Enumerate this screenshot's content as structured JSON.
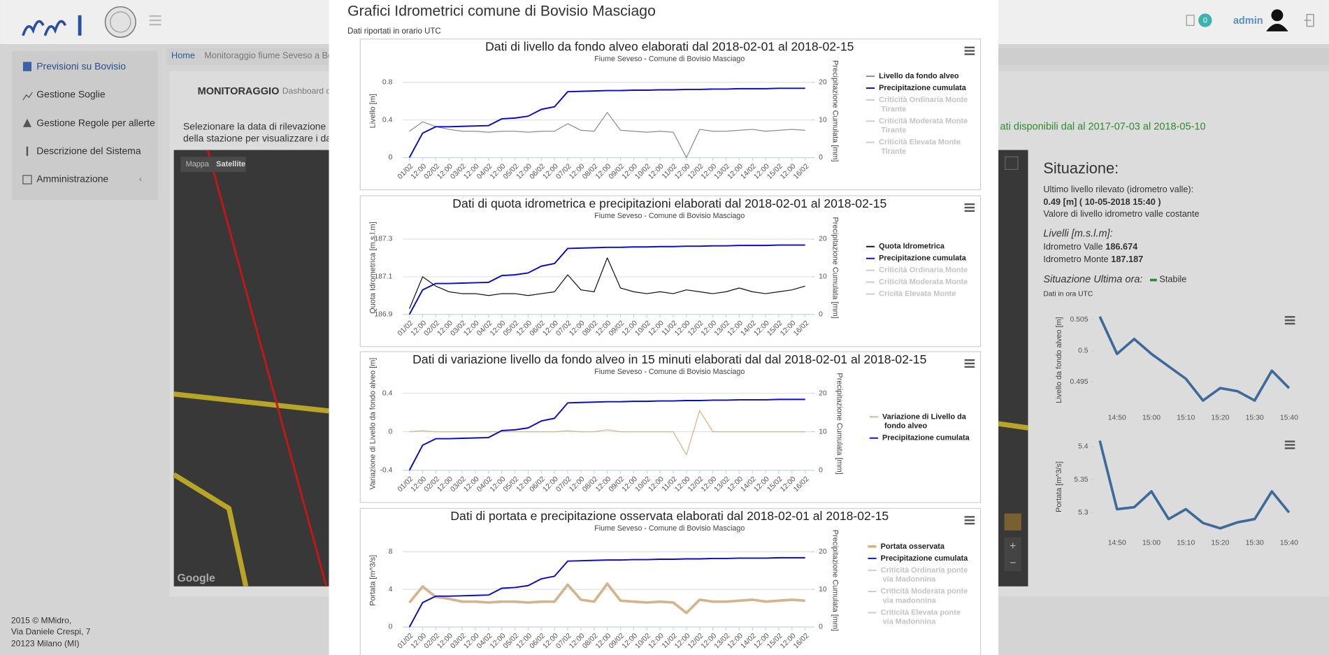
{
  "header": {
    "badge": "0",
    "user": "admin"
  },
  "sidebar": [
    "Previsioni su Bovisio",
    "Gestione Soglie",
    "Gestione Regole per allerte",
    "Descrizione del Sistema",
    "Amministrazione"
  ],
  "breadcrumb": [
    "Home",
    "Monitoraggio fiume Seveso a Bo"
  ],
  "panel": {
    "title": "MONITORAGGIO",
    "subtitle": "Dashboard c",
    "instructions": [
      "Selezionare la data di rilevazione e c",
      "della stazione per visualizzare i dati"
    ],
    "availability": "ati disponibili dal al 2017-07-03 al 2018-05-10"
  },
  "map": {
    "controls": [
      "Mappa",
      "Satellite"
    ],
    "brand": "Google"
  },
  "footer": [
    "2015 © MMidro,",
    "Via Daniele Crespi, 7",
    "20123 Milano (MI)"
  ],
  "modal": {
    "title": "Grafici Idrometrici comune di Bovisio Masciago",
    "note": "Dati riportati in orario UTC"
  },
  "situation": {
    "title": "Situazione:",
    "last_label": "Ultimo livello rilevato (idrometro valle):",
    "last_value": "0.49 [m] ( 10-05-2018 15:40 )",
    "trend": "Valore di livello idrometro valle costante",
    "levels_title": "Livelli [m.s.l.m]:",
    "valle_label": "Idrometro Valle",
    "valle_value": "186.674",
    "monte_label": "Idrometro Monte",
    "monte_value": "187.187",
    "hour_label": "Situazione Ultima ora:",
    "hour_value": "Stabile",
    "utc": "Dati in ora UTC"
  },
  "chart_data": [
    {
      "type": "line",
      "title": "Dati di livello da fondo alveo elaborati dal 2018-02-01 al 2018-02-15",
      "subtitle": "Fiume Seveso - Comune di Bovisio Masciago",
      "ylabel": "Livello [m]",
      "y2label": "Precipitazione Cumulata [mm]",
      "categories": [
        "01/02",
        "12:00",
        "02/02",
        "12:00",
        "03/02",
        "12:00",
        "04/02",
        "12:00",
        "05/02",
        "12:00",
        "06/02",
        "12:00",
        "07/02",
        "12:00",
        "08/02",
        "12:00",
        "09/02",
        "12:00",
        "10/02",
        "12:00",
        "11/02",
        "12:00",
        "12/02",
        "12:00",
        "13/02",
        "12:00",
        "14/02",
        "12:00",
        "15/02",
        "12:00",
        "16/02"
      ],
      "ylim": [
        0,
        0.9
      ],
      "yticks": [
        0,
        0.4,
        0.8
      ],
      "y2lim": [
        0,
        22.5
      ],
      "y2ticks": [
        0,
        10,
        20
      ],
      "grid": true,
      "series": [
        {
          "name": "Livello da fondo alveo",
          "color": "#8c8c8c",
          "values": [
            0.28,
            0.38,
            0.33,
            0.3,
            0.28,
            0.28,
            0.27,
            0.28,
            0.28,
            0.27,
            0.28,
            0.28,
            0.36,
            0.29,
            0.28,
            0.48,
            0.29,
            0.28,
            0.27,
            0.28,
            0.27,
            0.0,
            0.3,
            0.28,
            0.28,
            0.29,
            0.3,
            0.28,
            0.29,
            0.3,
            0.29
          ]
        },
        {
          "name": "Precipitazione cumulata",
          "color": "#0a0ac8",
          "axis": "y2",
          "values": [
            0,
            6.5,
            8.2,
            8.2,
            8.3,
            8.4,
            8.5,
            10.3,
            10.5,
            11.0,
            12.8,
            13.5,
            17.5,
            17.6,
            17.7,
            17.8,
            17.8,
            17.9,
            17.9,
            18.0,
            18.0,
            18.1,
            18.1,
            18.2,
            18.2,
            18.3,
            18.3,
            18.3,
            18.4,
            18.4,
            18.4
          ]
        }
      ],
      "hidden_series": [
        {
          "name": "Criticità Ordinaria Monte Tirante",
          "color": "#cccccc"
        },
        {
          "name": "Criticità Moderata Monte Tirante",
          "color": "#cccccc"
        },
        {
          "name": "Criticità Elevata Monte Tirante",
          "color": "#cccccc"
        }
      ]
    },
    {
      "type": "line",
      "title": "Dati di quota idrometrica e precipitazioni elaborati dal 2018-02-01 al 2018-02-15",
      "subtitle": "Fiume Seveso - Comune di Bovisio Masciago",
      "ylabel": "Quota Idrometrica [m.s.l.m]",
      "y2label": "Precipitazione Cumulata [mm]",
      "categories": [
        "01/02",
        "12:00",
        "02/02",
        "12:00",
        "03/02",
        "12:00",
        "04/02",
        "12:00",
        "05/02",
        "12:00",
        "06/02",
        "12:00",
        "07/02",
        "12:00",
        "08/02",
        "12:00",
        "09/02",
        "12:00",
        "10/02",
        "12:00",
        "11/02",
        "12:00",
        "12/02",
        "12:00",
        "13/02",
        "12:00",
        "14/02",
        "12:00",
        "15/02",
        "12:00",
        "16/02"
      ],
      "ylim": [
        186.9,
        187.35
      ],
      "yticks": [
        186.9,
        187.1,
        187.3
      ],
      "y2lim": [
        0,
        22.5
      ],
      "y2ticks": [
        0,
        10,
        20
      ],
      "grid": true,
      "series": [
        {
          "name": "Quota Idrometrica",
          "color": "#111111",
          "values": [
            186.93,
            187.1,
            187.05,
            187.02,
            187.01,
            187.01,
            187.0,
            187.01,
            187.01,
            187.0,
            187.01,
            187.02,
            187.11,
            187.03,
            187.02,
            187.2,
            187.04,
            187.02,
            187.01,
            187.02,
            187.01,
            187.03,
            187.02,
            187.01,
            187.02,
            187.04,
            187.02,
            187.01,
            187.02,
            187.03,
            187.05
          ]
        },
        {
          "name": "Precipitazione cumulata",
          "color": "#0a0ac8",
          "axis": "y2",
          "values": [
            0,
            6.5,
            8.2,
            8.2,
            8.3,
            8.4,
            8.5,
            10.3,
            10.5,
            11.0,
            12.8,
            13.5,
            17.5,
            17.6,
            17.7,
            17.8,
            17.8,
            17.9,
            17.9,
            18.0,
            18.0,
            18.1,
            18.1,
            18.2,
            18.2,
            18.3,
            18.3,
            18.3,
            18.4,
            18.4,
            18.4
          ]
        }
      ],
      "hidden_series": [
        {
          "name": "Criticità Ordinaria Monte",
          "color": "#cccccc"
        },
        {
          "name": "Criticità Moderata Monte",
          "color": "#cccccc"
        },
        {
          "name": "Cricità Elevata Monte",
          "color": "#cccccc"
        }
      ]
    },
    {
      "type": "line",
      "title": "Dati di variazione livello da fondo alveo in 15 minuti elaborati dal dal 2018-02-01 al 2018-02-15",
      "subtitle": "Fiume Seveso - Comune di Bovisio Masciago",
      "ylabel": "Variazione di Livello da fondo alveo [m]",
      "y2label": "Precipitazione Cumulata [mm]",
      "categories": [
        "01/02",
        "12:00",
        "02/02",
        "12:00",
        "03/02",
        "12:00",
        "04/02",
        "12:00",
        "05/02",
        "12:00",
        "06/02",
        "12:00",
        "07/02",
        "12:00",
        "08/02",
        "12:00",
        "09/02",
        "12:00",
        "10/02",
        "12:00",
        "11/02",
        "12:00",
        "12/02",
        "12:00",
        "13/02",
        "12:00",
        "14/02",
        "12:00",
        "15/02",
        "12:00",
        "16/02"
      ],
      "ylim": [
        -0.4,
        0.48
      ],
      "yticks": [
        -0.4,
        0,
        0.4
      ],
      "y2lim": [
        0,
        22
      ],
      "y2ticks": [
        0,
        10,
        20
      ],
      "grid": true,
      "series": [
        {
          "name": "Variazione di Livello da fondo alveo",
          "color": "#d4b48c",
          "values": [
            0,
            0.01,
            0,
            0,
            0,
            0,
            0,
            0,
            0,
            0,
            0,
            0,
            0.01,
            0,
            0,
            0.02,
            0,
            0,
            0,
            0,
            0,
            -0.24,
            0.22,
            0,
            0,
            0,
            0,
            0,
            0,
            0,
            0
          ]
        },
        {
          "name": "Precipitazione cumulata",
          "color": "#0a0ac8",
          "axis": "y2",
          "values": [
            0,
            6.5,
            8.2,
            8.2,
            8.3,
            8.4,
            8.5,
            10.3,
            10.5,
            11.0,
            12.8,
            13.5,
            17.5,
            17.6,
            17.7,
            17.8,
            17.8,
            17.9,
            17.9,
            18.0,
            18.0,
            18.1,
            18.1,
            18.2,
            18.2,
            18.3,
            18.3,
            18.3,
            18.4,
            18.4,
            18.4
          ]
        }
      ],
      "hidden_series": []
    },
    {
      "type": "line",
      "title": "Dati di portata e precipitazione osservata elaborati dal 2018-02-01 al 2018-02-15",
      "subtitle": "Fiume Seveso - Comune di Bovisio Masciago",
      "ylabel": "Portata [m^3/s]",
      "y2label": "Precipitazione Cumulata [mm]",
      "categories": [
        "01/02",
        "12:00",
        "02/02",
        "12:00",
        "03/02",
        "12:00",
        "04/02",
        "12:00",
        "05/02",
        "12:00",
        "06/02",
        "12:00",
        "07/02",
        "12:00",
        "08/02",
        "12:00",
        "09/02",
        "12:00",
        "10/02",
        "12:00",
        "11/02",
        "12:00",
        "12/02",
        "12:00",
        "13/02",
        "12:00",
        "14/02",
        "12:00",
        "15/02",
        "12:00",
        "16/02"
      ],
      "ylim": [
        0,
        9
      ],
      "yticks": [
        0,
        4,
        8
      ],
      "y2lim": [
        0,
        22.5
      ],
      "y2ticks": [
        0,
        10,
        20
      ],
      "grid": true,
      "series": [
        {
          "name": "Portata osservata",
          "color": "#d4b48c",
          "values": [
            2.6,
            4.3,
            3.2,
            3.0,
            2.7,
            2.7,
            2.6,
            2.7,
            2.7,
            2.6,
            2.7,
            2.7,
            4.5,
            2.9,
            2.7,
            4.6,
            2.8,
            2.7,
            2.6,
            2.7,
            2.6,
            1.5,
            2.9,
            2.7,
            2.7,
            2.8,
            2.9,
            2.7,
            2.8,
            2.9,
            2.8
          ]
        },
        {
          "name": "Precipitazione cumulata",
          "color": "#0a0ac8",
          "axis": "y2",
          "values": [
            0,
            6.5,
            8.2,
            8.2,
            8.3,
            8.4,
            8.5,
            10.3,
            10.5,
            11.0,
            12.8,
            13.5,
            17.5,
            17.6,
            17.7,
            17.8,
            17.8,
            17.9,
            17.9,
            18.0,
            18.0,
            18.1,
            18.1,
            18.2,
            18.2,
            18.3,
            18.3,
            18.3,
            18.4,
            18.4,
            18.4
          ]
        }
      ],
      "hidden_series": [
        {
          "name": "Criticità Ordinaria ponte via Madonnina",
          "color": "#cccccc"
        },
        {
          "name": "Criticità Moderata ponte via madonnina",
          "color": "#cccccc"
        },
        {
          "name": "Criticità Elevata ponte via Madonnina",
          "color": "#cccccc"
        }
      ]
    },
    {
      "type": "line",
      "ylabel": "Livello da fondo alveo [m]",
      "categories": [
        null,
        "14:50",
        null,
        "15:00",
        null,
        "15:10",
        null,
        "15:20",
        null,
        "15:30",
        null,
        "15:40"
      ],
      "ylim": [
        0.491,
        0.506
      ],
      "yticks": [
        0.495,
        0.5,
        0.505
      ],
      "grid": false,
      "series": [
        {
          "color": "#3d6a99",
          "values": [
            0.5055,
            0.4995,
            0.5019,
            0.4995,
            0.4975,
            0.4955,
            0.492,
            0.494,
            0.4935,
            0.492,
            0.4968,
            0.494
          ]
        }
      ]
    },
    {
      "type": "line",
      "ylabel": "Portata [m^3/s]",
      "categories": [
        null,
        "14:50",
        null,
        "15:00",
        null,
        "15:10",
        null,
        "15:20",
        null,
        "15:30",
        null,
        "15:40"
      ],
      "ylim": [
        5.265,
        5.413
      ],
      "yticks": [
        5.3,
        5.35,
        5.4
      ],
      "grid": false,
      "series": [
        {
          "color": "#3d6a99",
          "values": [
            5.409,
            5.305,
            5.308,
            5.332,
            5.29,
            5.305,
            5.284,
            5.276,
            5.285,
            5.29,
            5.332,
            5.3
          ]
        }
      ]
    }
  ]
}
